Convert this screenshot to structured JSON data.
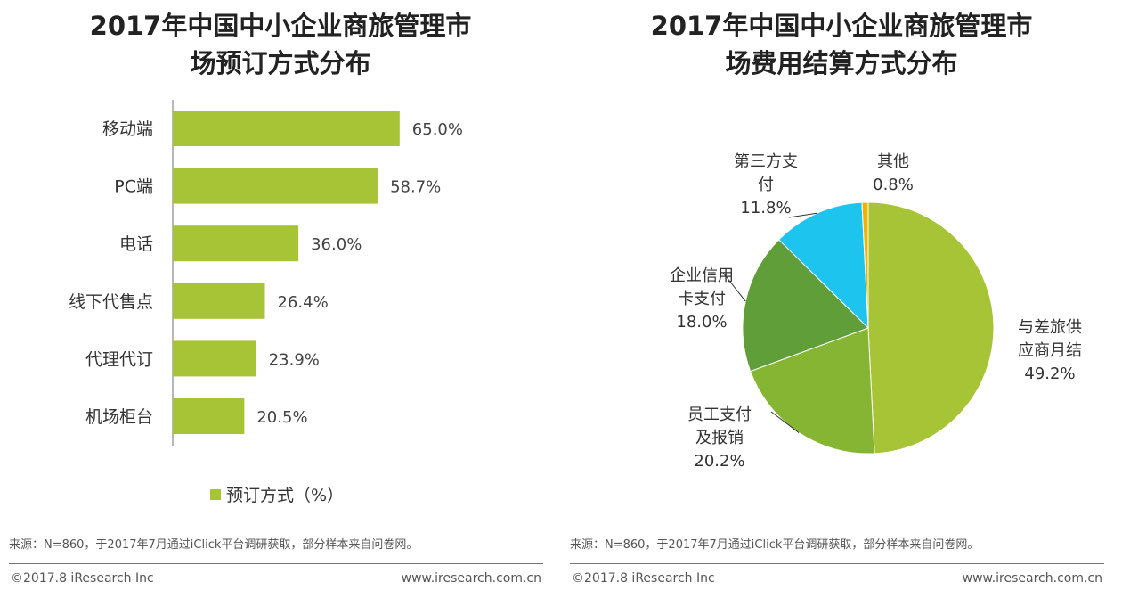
{
  "charts": [
    {
      "title_line1": "2017年中国中小企业商旅管理市",
      "title_line2": "场预订方式分布",
      "legend": "预订方式（%）",
      "source": "来源：N=860，于2017年7月通过iClick平台调研获取，部分样本来自问卷网。",
      "copyright": "©2017.8 iResearch Inc",
      "url": "www.iresearch.com.cn"
    },
    {
      "title_line1": "2017年中国中小企业商旅管理市",
      "title_line2": "场费用结算方式分布",
      "source": "来源：N=860，于2017年7月通过iClick平台调研获取，部分样本来自问卷网。",
      "copyright": "©2017.8 iResearch Inc",
      "url": "www.iresearch.com.cn"
    }
  ],
  "chart_data": [
    {
      "type": "bar",
      "orientation": "horizontal",
      "title": "2017年中国中小企业商旅管理市场预订方式分布",
      "categories": [
        "移动端",
        "PC端",
        "电话",
        "线下代售点",
        "代理代订",
        "机场柜台"
      ],
      "values": [
        65.0,
        58.7,
        36.0,
        26.4,
        23.9,
        20.5
      ],
      "value_labels": [
        "65.0%",
        "58.7%",
        "36.0%",
        "26.4%",
        "23.9%",
        "20.5%"
      ],
      "series_name": "预订方式（%）",
      "xlim": [
        0,
        100
      ],
      "color": "#a6c436"
    },
    {
      "type": "pie",
      "title": "2017年中国中小企业商旅管理市场费用结算方式分布",
      "slices": [
        {
          "name": "与差旅供应商月结",
          "lines": [
            "与差旅供",
            "应商月结",
            "49.2%"
          ],
          "value": 49.2,
          "color": "#a6c436"
        },
        {
          "name": "员工支付及报销",
          "lines": [
            "员工支付",
            "及报销",
            "20.2%"
          ],
          "value": 20.2,
          "color": "#86b534"
        },
        {
          "name": "企业信用卡支付",
          "lines": [
            "企业信用",
            "卡支付",
            "18.0%"
          ],
          "value": 18.0,
          "color": "#5f9e38"
        },
        {
          "name": "第三方支付",
          "lines": [
            "第三方支",
            "付",
            "11.8%"
          ],
          "value": 11.8,
          "color": "#1cc4ee"
        },
        {
          "name": "其他",
          "lines": [
            "其他",
            "0.8%"
          ],
          "value": 0.8,
          "color": "#f0b400"
        }
      ]
    }
  ]
}
